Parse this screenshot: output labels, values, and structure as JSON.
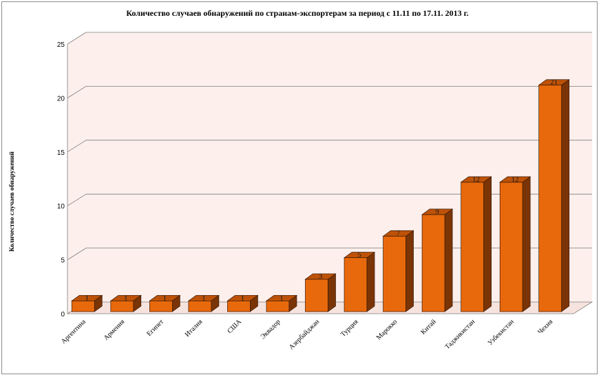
{
  "chart_data": {
    "type": "bar",
    "title": "Количество случаев обнаружений по странам-экспортерам за период с 11.11 по 17.11. 2013 г.",
    "ylabel": "Количество случаев обнаружений",
    "xlabel": "",
    "categories": [
      "Аргентина",
      "Армения",
      "Египет",
      "Италия",
      "США",
      "Эквадор",
      "Азербайджан",
      "Турция",
      "Марокко",
      "Китай",
      "Таджикистан",
      "Узбекистан",
      "Чехия"
    ],
    "values": [
      1,
      1,
      1,
      1,
      1,
      1,
      3,
      5,
      7,
      9,
      12,
      12,
      21
    ],
    "data_labels": [
      "1",
      "1",
      "1",
      "1",
      "1",
      "1",
      "3",
      "5",
      "7",
      "9",
      "12",
      "12",
      "21"
    ],
    "ylim": [
      0,
      25
    ],
    "yticks": [
      "0",
      "5",
      "10",
      "15",
      "20",
      "25"
    ],
    "grid": true,
    "legend": "none",
    "style": "3d-columns",
    "colors": {
      "bar_front": "#e8690c",
      "bar_side": "#7a3406",
      "bar_top": "#bd5208",
      "bar_edge": "#3a1a04",
      "wall": "#fcefec",
      "floor": "#f7e3de",
      "grid": "#7f7f7f"
    }
  }
}
